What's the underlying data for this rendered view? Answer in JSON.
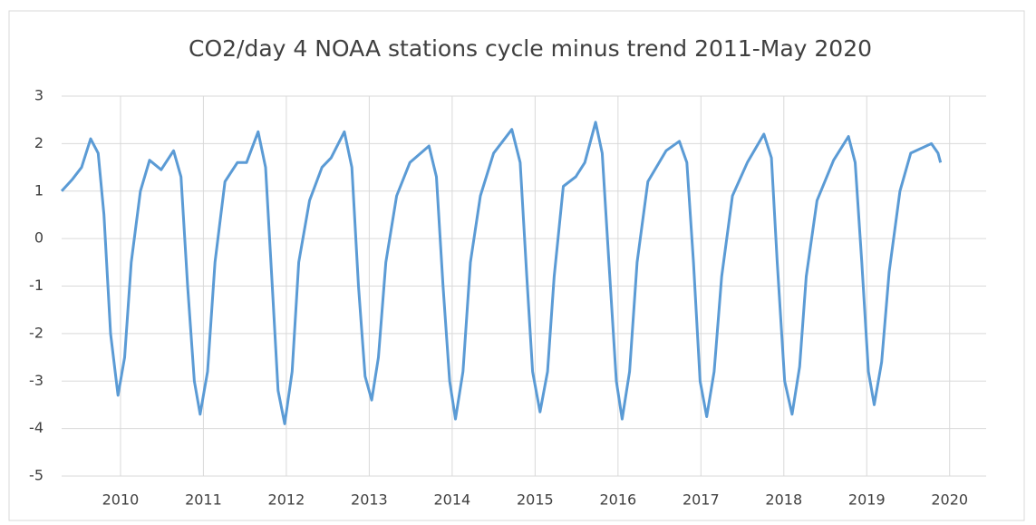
{
  "chart_data": {
    "type": "line",
    "title": "CO2/day 4 NOAA stations cycle minus trend 2011-May 2020",
    "x": [
      2009.29,
      2009.42,
      2009.53,
      2009.64,
      2009.73,
      2009.8,
      2009.88,
      2009.97,
      2010.05,
      2010.13,
      2010.24,
      2010.35,
      2010.49,
      2010.64,
      2010.73,
      2010.81,
      2010.89,
      2010.96,
      2011.05,
      2011.14,
      2011.26,
      2011.41,
      2011.52,
      2011.66,
      2011.75,
      2011.83,
      2011.9,
      2011.98,
      2012.07,
      2012.15,
      2012.28,
      2012.43,
      2012.54,
      2012.7,
      2012.79,
      2012.87,
      2012.95,
      2013.03,
      2013.11,
      2013.2,
      2013.33,
      2013.49,
      2013.72,
      2013.81,
      2013.89,
      2013.97,
      2014.04,
      2014.13,
      2014.22,
      2014.34,
      2014.5,
      2014.72,
      2014.82,
      2014.9,
      2014.97,
      2015.06,
      2015.15,
      2015.23,
      2015.34,
      2015.49,
      2015.6,
      2015.73,
      2015.81,
      2015.89,
      2015.98,
      2016.05,
      2016.14,
      2016.23,
      2016.36,
      2016.58,
      2016.74,
      2016.83,
      2016.91,
      2016.99,
      2017.07,
      2017.16,
      2017.25,
      2017.38,
      2017.56,
      2017.76,
      2017.85,
      2017.92,
      2018.01,
      2018.1,
      2018.19,
      2018.27,
      2018.4,
      2018.6,
      2018.78,
      2018.86,
      2018.94,
      2019.02,
      2019.09,
      2019.18,
      2019.27,
      2019.4,
      2019.53,
      2019.78,
      2019.86,
      2019.89
    ],
    "series": [
      {
        "color": "#5b9bd5",
        "values": [
          1.0,
          1.25,
          1.5,
          2.1,
          1.8,
          0.5,
          -2.0,
          -3.3,
          -2.5,
          -0.5,
          1.0,
          1.65,
          1.45,
          1.85,
          1.3,
          -1.0,
          -3.0,
          -3.7,
          -2.8,
          -0.5,
          1.2,
          1.6,
          1.6,
          2.25,
          1.5,
          -1.0,
          -3.2,
          -3.9,
          -2.8,
          -0.5,
          0.8,
          1.5,
          1.7,
          2.25,
          1.5,
          -1.0,
          -2.9,
          -3.4,
          -2.5,
          -0.5,
          0.9,
          1.6,
          1.95,
          1.3,
          -1.0,
          -3.0,
          -3.8,
          -2.8,
          -0.5,
          0.9,
          1.8,
          2.3,
          1.6,
          -0.8,
          -2.8,
          -3.65,
          -2.8,
          -0.8,
          1.1,
          1.3,
          1.6,
          2.45,
          1.8,
          -0.5,
          -3.0,
          -3.8,
          -2.8,
          -0.5,
          1.2,
          1.85,
          2.05,
          1.6,
          -0.5,
          -3.0,
          -3.75,
          -2.8,
          -0.8,
          0.9,
          1.6,
          2.2,
          1.7,
          -0.5,
          -3.0,
          -3.7,
          -2.7,
          -0.8,
          0.8,
          1.65,
          2.15,
          1.6,
          -0.5,
          -2.8,
          -3.5,
          -2.6,
          -0.7,
          1.0,
          1.8,
          2.0,
          1.8,
          1.6
        ]
      }
    ],
    "xlim": [
      2009.29,
      2020.44
    ],
    "xticks": [
      2010,
      2011,
      2012,
      2013,
      2014,
      2015,
      2016,
      2017,
      2018,
      2019,
      2020
    ],
    "ylim": [
      -5,
      3
    ],
    "yticks": [
      -5,
      -4,
      -3,
      -2,
      -1,
      0,
      1,
      2,
      3
    ],
    "grid": true
  }
}
